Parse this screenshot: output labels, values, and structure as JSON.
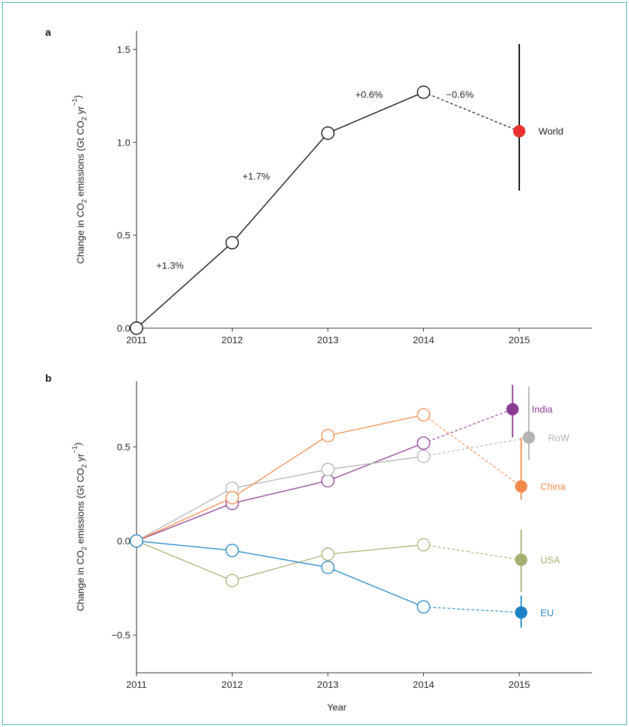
{
  "chart_data": [
    {
      "panel": "a",
      "type": "line",
      "ylabel_parts": [
        "Change in CO",
        "2",
        " emissions (Gt CO",
        "2",
        " yr",
        "−1",
        ")"
      ],
      "xlabel": "",
      "x_ticks": [
        "2011",
        "2012",
        "2013",
        "2014",
        "2015"
      ],
      "y_ticks": [
        "0.0",
        "0.5",
        "1.0",
        "1.5"
      ],
      "xlim": [
        2011,
        2015.8
      ],
      "ylim": [
        0,
        1.6
      ],
      "series": [
        {
          "name": "World",
          "color": "#000000",
          "projection_color": "#e8312f",
          "x": [
            2011,
            2012,
            2013,
            2014
          ],
          "values": [
            0.0,
            0.46,
            1.05,
            1.27
          ],
          "projection": {
            "x": 2015,
            "value": 1.06,
            "error_low": 0.74,
            "error_high": 1.53
          }
        }
      ],
      "annotations": [
        {
          "text": "+1.3%",
          "x": 2011.35,
          "y": 0.32
        },
        {
          "text": "+1.7%",
          "x": 2012.25,
          "y": 0.8
        },
        {
          "text": "+0.6%",
          "x": 2013.43,
          "y": 1.24
        },
        {
          "text": "−0.6%",
          "x": 2014.38,
          "y": 1.24
        }
      ]
    },
    {
      "panel": "b",
      "type": "line",
      "ylabel_parts": [
        "Change in CO",
        "2",
        " emissions (Gt CO",
        "2",
        " yr",
        "−1",
        ")"
      ],
      "xlabel": "Year",
      "x_ticks": [
        "2011",
        "2012",
        "2013",
        "2014",
        "2015"
      ],
      "y_ticks": [
        "−0.5",
        "0.0",
        "0.5"
      ],
      "xlim": [
        2011,
        2015.8
      ],
      "ylim": [
        -0.7,
        0.85
      ],
      "series": [
        {
          "name": "India",
          "color": "#8b3a94",
          "x": [
            2011,
            2012,
            2013,
            2014
          ],
          "values": [
            0.0,
            0.2,
            0.32,
            0.52
          ],
          "projection": {
            "x": 2014.93,
            "value": 0.7,
            "error_low": 0.55,
            "error_high": 0.83
          }
        },
        {
          "name": "RoW",
          "color": "#b3b3b3",
          "x": [
            2011,
            2012,
            2013,
            2014
          ],
          "values": [
            0.0,
            0.28,
            0.38,
            0.45
          ],
          "projection": {
            "x": 2015.1,
            "value": 0.55,
            "error_low": 0.43,
            "error_high": 0.82
          }
        },
        {
          "name": "China",
          "color": "#f58a4b",
          "x": [
            2011,
            2012,
            2013,
            2014
          ],
          "values": [
            0.0,
            0.23,
            0.56,
            0.67
          ],
          "projection": {
            "x": 2015.02,
            "value": 0.29,
            "error_low": 0.22,
            "error_high": 0.55
          }
        },
        {
          "name": "USA",
          "color": "#a8ae6e",
          "x": [
            2011,
            2012,
            2013,
            2014
          ],
          "values": [
            0.0,
            -0.21,
            -0.07,
            -0.02
          ],
          "projection": {
            "x": 2015.02,
            "value": -0.1,
            "error_low": -0.27,
            "error_high": 0.06
          }
        },
        {
          "name": "EU",
          "color": "#1a81c7",
          "x": [
            2011,
            2012,
            2013,
            2014
          ],
          "values": [
            0.0,
            -0.05,
            -0.14,
            -0.35
          ],
          "projection": {
            "x": 2015.02,
            "value": -0.38,
            "error_low": -0.46,
            "error_high": -0.29
          }
        }
      ]
    }
  ]
}
